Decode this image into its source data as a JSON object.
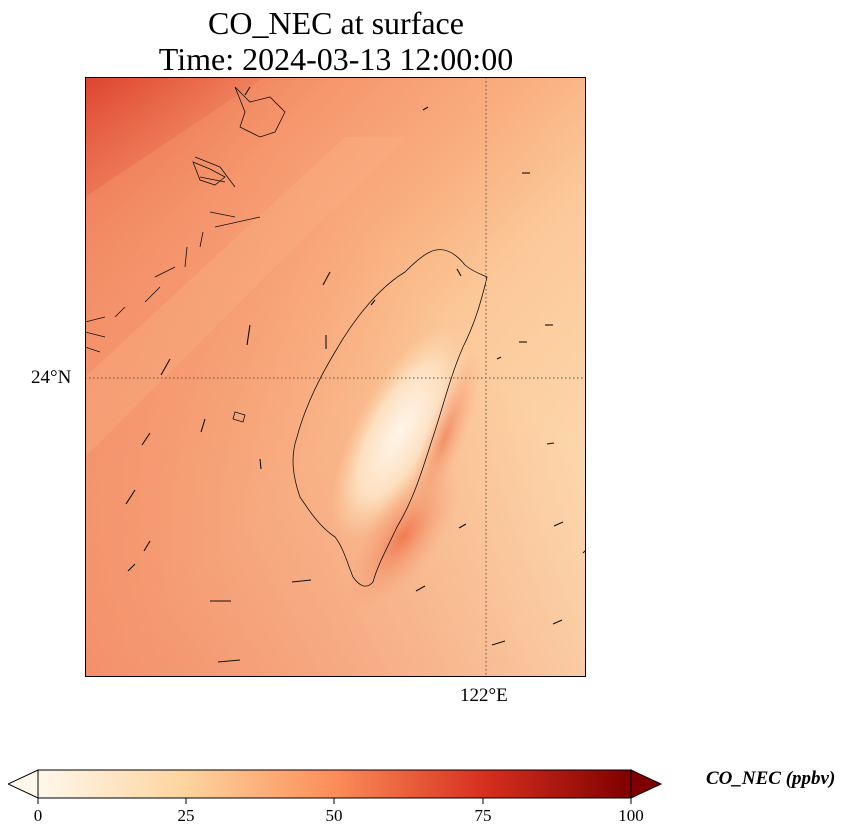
{
  "title": {
    "line1": "CO_NEC at surface",
    "line2": "Time: 2024-03-13 12:00:00"
  },
  "map": {
    "lat_label": "24°N",
    "lon_label": "122°E",
    "gridlines": "dotted",
    "colormap": "OrRd",
    "colors": [
      "#fff7ec",
      "#fdd49e",
      "#fc8d59",
      "#d7301f",
      "#7f0000"
    ]
  },
  "colorbar": {
    "label": "CO_NEC (ppbv)",
    "ticks": [
      "0",
      "25",
      "50",
      "75",
      "100"
    ],
    "min": 0,
    "max": 100,
    "extend": "both"
  }
}
